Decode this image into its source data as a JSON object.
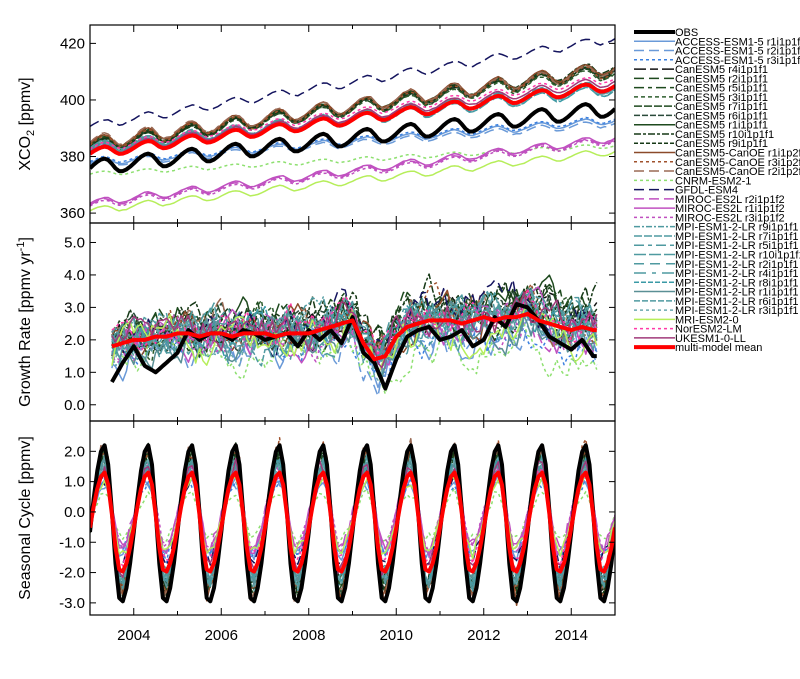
{
  "chart_data": [
    {
      "type": "line",
      "panel": "xco2",
      "ylabel": "XCO2 [ppmv]",
      "ylabel_main": "XCO",
      "ylabel_sub": "2",
      "ylabel_unit": " [ppmv]",
      "ylim": [
        356.5,
        426.5
      ],
      "yticks": [
        360,
        380,
        400,
        420
      ],
      "ytick_labels": [
        "360",
        "380",
        "400",
        "420"
      ]
    },
    {
      "type": "line",
      "panel": "growth",
      "ylabel": "Growth Rate [ppmv yr-1]",
      "ylabel_main": "Growth Rate [ppmv yr",
      "ylabel_sup": "-1",
      "ylabel_end": "]",
      "ylim": [
        -0.5,
        5.6
      ],
      "yticks": [
        0,
        1,
        2,
        3,
        4,
        5
      ],
      "ytick_labels": [
        "0.0",
        "1.0",
        "2.0",
        "3.0",
        "4.0",
        "5.0"
      ],
      "obs_quarterly_from_2003_5": [
        0.7,
        1.3,
        1.8,
        1.2,
        1.0,
        1.3,
        1.6,
        2.3,
        2.0,
        2.2,
        2.2,
        2.0,
        2.3,
        2.2,
        2.0,
        2.1,
        2.2,
        1.8,
        2.3,
        2.0,
        2.3,
        1.9,
        2.7,
        1.6,
        1.3,
        0.5,
        1.4,
        2.1,
        2.3,
        2.4,
        2.0,
        2.1,
        2.3,
        1.8,
        2.0,
        2.7,
        2.4,
        3.1,
        3.0,
        2.6,
        2.1,
        1.9,
        1.7,
        2.0,
        1.5
      ],
      "mean_quarterly_from_2003_5": [
        1.8,
        1.9,
        2.0,
        2.0,
        2.1,
        2.1,
        2.2,
        2.2,
        2.1,
        2.2,
        2.2,
        2.1,
        2.2,
        2.2,
        2.2,
        2.1,
        2.2,
        2.2,
        2.2,
        2.3,
        2.4,
        2.5,
        2.6,
        1.9,
        1.4,
        1.5,
        2.1,
        2.4,
        2.5,
        2.6,
        2.6,
        2.6,
        2.5,
        2.6,
        2.7,
        2.6,
        2.7,
        2.7,
        2.8,
        2.6,
        2.5,
        2.4,
        2.3,
        2.4,
        2.3
      ]
    },
    {
      "type": "line",
      "panel": "seasonal",
      "ylabel": "Seasonal Cycle [ppmv]",
      "ylim": [
        -3.4,
        3.0
      ],
      "yticks": [
        -3,
        -2,
        -1,
        0,
        1,
        2
      ],
      "ytick_labels": [
        "-3.0",
        "-2.0",
        "-1.0",
        "0.0",
        "1.0",
        "2.0"
      ]
    }
  ],
  "x_axis": {
    "xlim": [
      2003,
      2015
    ],
    "ticks": [
      2004,
      2006,
      2008,
      2010,
      2012,
      2014
    ],
    "tick_labels": [
      "2004",
      "2006",
      "2008",
      "2010",
      "2012",
      "2014"
    ]
  },
  "series": [
    {
      "name": "OBS",
      "color": "#000000",
      "dash": "",
      "width": 4,
      "xco2_2003": 376.5,
      "xco2_2015": 397.5,
      "amp_max": 2.2,
      "amp_min": -3.0,
      "gr_offset": 0
    },
    {
      "name": "ACCESS-ESM1-5 r1i1p1f1",
      "color": "#6a9ad8",
      "dash": "",
      "width": 1.5,
      "xco2_2003": 378,
      "xco2_2015": 393,
      "amp_max": 1.0,
      "amp_min": -1.4,
      "gr_offset": -0.6
    },
    {
      "name": "ACCESS-ESM1-5 r2i1p1f1",
      "color": "#6a9ad8",
      "dash": "10,5",
      "width": 1.5,
      "xco2_2003": 377.5,
      "xco2_2015": 392,
      "amp_max": 1.0,
      "amp_min": -1.4,
      "gr_offset": -0.7
    },
    {
      "name": "ACCESS-ESM1-5 r3i1p1f1",
      "color": "#3a80e0",
      "dash": "3,3",
      "width": 1.5,
      "xco2_2003": 378.5,
      "xco2_2015": 393.5,
      "amp_max": 1.0,
      "amp_min": -1.4,
      "gr_offset": -0.6
    },
    {
      "name": "CanESM5 r4i1p1f1",
      "color": "#111111",
      "dash": "12,4,8,4",
      "width": 1.5,
      "xco2_2003": 384,
      "xco2_2015": 411,
      "amp_max": 1.9,
      "amp_min": -2.5,
      "gr_offset": 0.3
    },
    {
      "name": "CanESM5 r2i1p1f1",
      "color": "#1e4a1e",
      "dash": "10,5",
      "width": 1.5,
      "xco2_2003": 384.5,
      "xco2_2015": 411.5,
      "amp_max": 1.9,
      "amp_min": -2.5,
      "gr_offset": 0.3
    },
    {
      "name": "CanESM5 r5i1p1f1",
      "color": "#1e4a1e",
      "dash": "10,4,4,4",
      "width": 1.5,
      "xco2_2003": 383.5,
      "xco2_2015": 410.5,
      "amp_max": 1.9,
      "amp_min": -2.5,
      "gr_offset": 0.4
    },
    {
      "name": "CanESM5 r3i1p1f1",
      "color": "#2f5e2f",
      "dash": "4,3",
      "width": 1.5,
      "xco2_2003": 384,
      "xco2_2015": 410,
      "amp_max": 1.9,
      "amp_min": -2.5,
      "gr_offset": 0.2
    },
    {
      "name": "CanESM5 r7i1p1f1",
      "color": "#1e4a1e",
      "dash": "8,2",
      "width": 1.5,
      "xco2_2003": 385,
      "xco2_2015": 411,
      "amp_max": 1.9,
      "amp_min": -2.5,
      "gr_offset": 0.3
    },
    {
      "name": "CanESM5 r6i1p1f1",
      "color": "#2a4a3a",
      "dash": "6,2",
      "width": 1.5,
      "xco2_2003": 384,
      "xco2_2015": 411,
      "amp_max": 1.9,
      "amp_min": -2.5,
      "gr_offset": 0.35
    },
    {
      "name": "CanESM5 r1i1p1f1",
      "color": "#1e4a1e",
      "dash": "",
      "width": 1.5,
      "xco2_2003": 384.5,
      "xco2_2015": 412,
      "amp_max": 1.9,
      "amp_min": -2.5,
      "gr_offset": 0.4
    },
    {
      "name": "CanESM5 r10i1p1f1",
      "color": "#163816",
      "dash": "7,2,3,2",
      "width": 1.5,
      "xco2_2003": 383.5,
      "xco2_2015": 412.5,
      "amp_max": 1.9,
      "amp_min": -2.5,
      "gr_offset": 0.9
    },
    {
      "name": "CanESM5 r9i1p1f1",
      "color": "#163816",
      "dash": "4,2",
      "width": 1.5,
      "xco2_2003": 384,
      "xco2_2015": 411,
      "amp_max": 1.9,
      "amp_min": -2.5,
      "gr_offset": 0.3
    },
    {
      "name": "CanESM5-CanOE r1i1p2f1",
      "color": "#8b4a2a",
      "dash": "",
      "width": 1.5,
      "xco2_2003": 385,
      "xco2_2015": 412,
      "amp_max": 2.1,
      "amp_min": -2.7,
      "gr_offset": 0.3
    },
    {
      "name": "CanESM5-CanOE r3i1p2f1",
      "color": "#a0522d",
      "dash": "3,3",
      "width": 1.5,
      "xco2_2003": 384.5,
      "xco2_2015": 411,
      "amp_max": 2.1,
      "amp_min": -2.7,
      "gr_offset": 0.2
    },
    {
      "name": "CanESM5-CanOE r2i1p2f1",
      "color": "#9a6a55",
      "dash": "10,5",
      "width": 1.5,
      "xco2_2003": 385.5,
      "xco2_2015": 411.5,
      "amp_max": 2.1,
      "amp_min": -2.7,
      "gr_offset": 0.25
    },
    {
      "name": "CNRM-ESM2-1",
      "color": "#8ee070",
      "dash": "3,3",
      "width": 1.5,
      "xco2_2003": 374,
      "xco2_2015": 384,
      "amp_max": 0.6,
      "amp_min": -0.9,
      "gr_offset": -1.0
    },
    {
      "name": "GFDL-ESM4",
      "color": "#14145e",
      "dash": "10,5",
      "width": 1.5,
      "xco2_2003": 391,
      "xco2_2015": 422,
      "amp_max": 1.2,
      "amp_min": -1.6,
      "gr_offset": 0.5
    },
    {
      "name": "MIROC-ES2L r2i1p1f2",
      "color": "#c050c0",
      "dash": "10,5",
      "width": 1.5,
      "xco2_2003": 363,
      "xco2_2015": 386,
      "amp_max": 1.4,
      "amp_min": -1.2,
      "gr_offset": -0.1
    },
    {
      "name": "MIROC-ES2L r1i1p1f2",
      "color": "#c050c0",
      "dash": "",
      "width": 1.5,
      "xco2_2003": 363.5,
      "xco2_2015": 386.5,
      "amp_max": 1.4,
      "amp_min": -1.2,
      "gr_offset": -0.1
    },
    {
      "name": "MIROC-ES2L r3i1p1f2",
      "color": "#c050c0",
      "dash": "3,3",
      "width": 1.5,
      "xco2_2003": 362.5,
      "xco2_2015": 385.5,
      "amp_max": 1.4,
      "amp_min": -1.2,
      "gr_offset": -0.15
    },
    {
      "name": "MPI-ESM1-2-LR r9i1p1f1",
      "color": "#4f9aa0",
      "dash": "6,2,2,2",
      "width": 1.5,
      "xco2_2003": 383,
      "xco2_2015": 405,
      "amp_max": 1.6,
      "amp_min": -2.2,
      "gr_offset": 0.1
    },
    {
      "name": "MPI-ESM1-2-LR r7i1p1f1",
      "color": "#4f9aa0",
      "dash": "8,2",
      "width": 1.5,
      "xco2_2003": 382.5,
      "xco2_2015": 405.5,
      "amp_max": 1.6,
      "amp_min": -2.2,
      "gr_offset": 0.0
    },
    {
      "name": "MPI-ESM1-2-LR r5i1p1f1",
      "color": "#4f9aa0",
      "dash": "10,4,4,4",
      "width": 1.5,
      "xco2_2003": 383.5,
      "xco2_2015": 404.5,
      "amp_max": 1.6,
      "amp_min": -2.2,
      "gr_offset": 0.05
    },
    {
      "name": "MPI-ESM1-2-LR r10i1p1f1",
      "color": "#4f9aa0",
      "dash": "12,3",
      "width": 1.5,
      "xco2_2003": 383,
      "xco2_2015": 406,
      "amp_max": 1.6,
      "amp_min": -2.2,
      "gr_offset": 0.15
    },
    {
      "name": "MPI-ESM1-2-LR r2i1p1f1",
      "color": "#4f9aa0",
      "dash": "10,6",
      "width": 1.5,
      "xco2_2003": 382,
      "xco2_2015": 404,
      "amp_max": 1.6,
      "amp_min": -2.2,
      "gr_offset": -0.05
    },
    {
      "name": "MPI-ESM1-2-LR r4i1p1f1",
      "color": "#4f9aa0",
      "dash": "12,6,4,6",
      "width": 1.5,
      "xco2_2003": 383,
      "xco2_2015": 405,
      "amp_max": 1.6,
      "amp_min": -2.2,
      "gr_offset": 0.0
    },
    {
      "name": "MPI-ESM1-2-LR r8i1p1f1",
      "color": "#3a9aa6",
      "dash": "5,2",
      "width": 1.5,
      "xco2_2003": 382.5,
      "xco2_2015": 404,
      "amp_max": 1.6,
      "amp_min": -2.2,
      "gr_offset": 0.1
    },
    {
      "name": "MPI-ESM1-2-LR r1i1p1f1",
      "color": "#5a8f95",
      "dash": "",
      "width": 1.5,
      "xco2_2003": 383,
      "xco2_2015": 405,
      "amp_max": 1.6,
      "amp_min": -2.2,
      "gr_offset": -0.3
    },
    {
      "name": "MPI-ESM1-2-LR r6i1p1f1",
      "color": "#4f9aa0",
      "dash": "6,2",
      "width": 1.5,
      "xco2_2003": 383.5,
      "xco2_2015": 405.5,
      "amp_max": 1.6,
      "amp_min": -2.2,
      "gr_offset": 0.05
    },
    {
      "name": "MPI-ESM1-2-LR r3i1p1f1",
      "color": "#6aa8ae",
      "dash": "3,3",
      "width": 1.5,
      "xco2_2003": 382.5,
      "xco2_2015": 404.5,
      "amp_max": 1.6,
      "amp_min": -2.2,
      "gr_offset": 0.0
    },
    {
      "name": "MRI-ESM2-0",
      "color": "#b6ee5a",
      "dash": "",
      "width": 1.5,
      "xco2_2003": 361,
      "xco2_2015": 382,
      "amp_max": 1.1,
      "amp_min": -1.3,
      "gr_offset": -0.4
    },
    {
      "name": "NorESM2-LM",
      "color": "#ff3aa8",
      "dash": "3,3",
      "width": 1.5,
      "xco2_2003": 383,
      "xco2_2015": 408,
      "amp_max": 1.3,
      "amp_min": -1.6,
      "gr_offset": 0.3
    },
    {
      "name": "UKESM1-0-LL",
      "color": "#a03a7a",
      "dash": "",
      "width": 1.5,
      "xco2_2003": 382,
      "xco2_2015": 407,
      "amp_max": 1.5,
      "amp_min": -1.9,
      "gr_offset": 0.1
    },
    {
      "name": "multi-model mean",
      "color": "#ff0000",
      "dash": "",
      "width": 4,
      "xco2_2003": 381.5,
      "xco2_2015": 405.5,
      "amp_max": 1.3,
      "amp_min": -2.0,
      "gr_offset": 0
    }
  ]
}
